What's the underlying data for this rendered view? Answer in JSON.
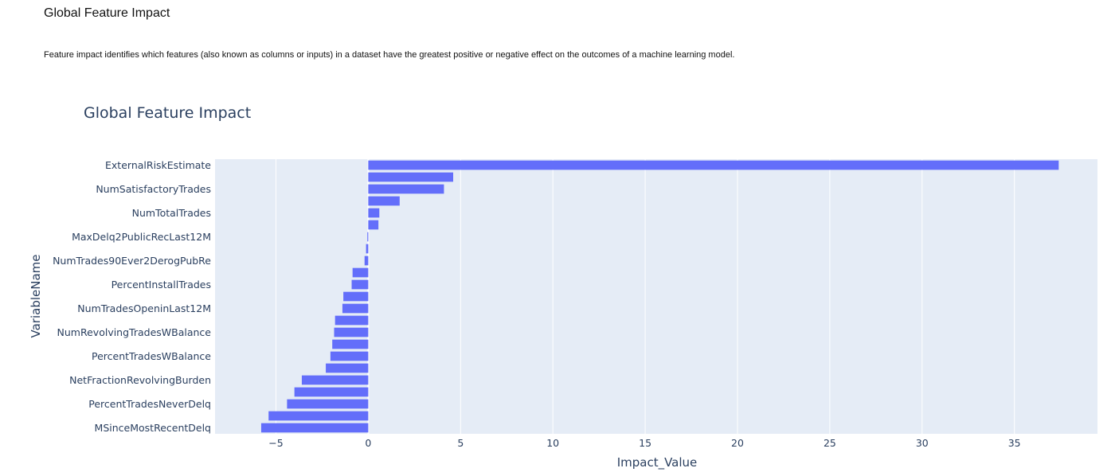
{
  "page": {
    "title": "Global Feature Impact",
    "description": "Feature impact identifies which features (also known as columns or inputs) in a dataset have the greatest positive or negative effect on the outcomes of a machine learning model."
  },
  "colors": {
    "bar": "#636efa",
    "plot_background": "#e5ecf6",
    "grid": "#ffffff",
    "text": "#2a3f5f"
  },
  "chart_data": {
    "type": "bar",
    "orientation": "horizontal",
    "title": "Global Feature Impact",
    "xlabel": "Impact_Value",
    "ylabel": "VariableName",
    "xlim": [
      -8.3,
      39.5
    ],
    "x_ticks": [
      -5,
      0,
      5,
      10,
      15,
      20,
      25,
      30,
      35
    ],
    "x_tick_labels": [
      "−5",
      "0",
      "5",
      "10",
      "15",
      "20",
      "25",
      "30",
      "35"
    ],
    "grid": true,
    "categories_top_to_bottom": [
      "ExternalRiskEstimate",
      "",
      "NumSatisfactoryTrades",
      "",
      "NumTotalTrades",
      "",
      "MaxDelq2PublicRecLast12M",
      "",
      "NumTrades90Ever2DerogPubRe",
      "",
      "PercentInstallTrades",
      "",
      "NumTradesOpeninLast12M",
      "",
      "NumRevolvingTradesWBalance",
      "",
      "PercentTradesWBalance",
      "",
      "NetFractionRevolvingBurden",
      "",
      "PercentTradesNeverDelq",
      "",
      "MSinceMostRecentDelq"
    ],
    "values_top_to_bottom": [
      37.4,
      4.6,
      4.1,
      1.7,
      0.6,
      0.55,
      -0.05,
      -0.12,
      -0.2,
      -0.85,
      -0.9,
      -1.35,
      -1.4,
      -1.8,
      -1.85,
      -1.95,
      -2.05,
      -2.3,
      -3.6,
      -4.0,
      -4.4,
      -5.4,
      -5.8
    ]
  }
}
